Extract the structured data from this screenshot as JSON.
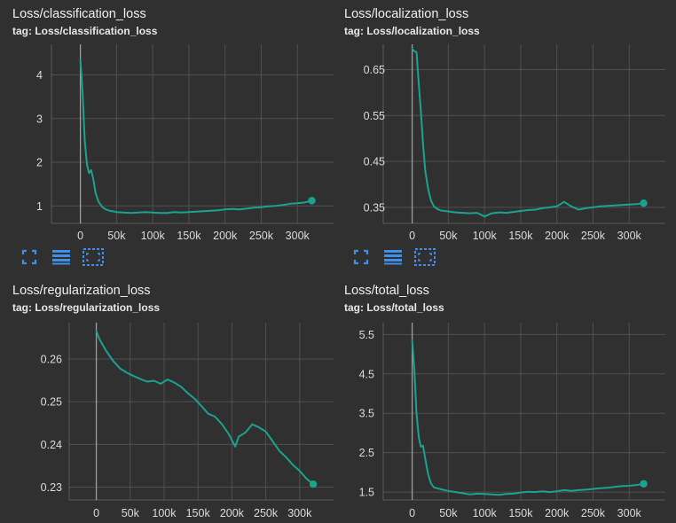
{
  "panels": [
    {
      "title": "Loss/classification_loss",
      "tag": "tag: Loss/classification_loss"
    },
    {
      "title": "Loss/localization_loss",
      "tag": "tag: Loss/localization_loss"
    },
    {
      "title": "Loss/regularization_loss",
      "tag": "tag: Loss/regularization_loss"
    },
    {
      "title": "Loss/total_loss",
      "tag": "tag: Loss/total_loss"
    }
  ],
  "toolbar": {
    "icons": [
      "fit-domain-icon",
      "data-table-icon",
      "selection-fit-icon"
    ],
    "accent": "#3f8ee8"
  },
  "colors": {
    "background": "#303030",
    "series": "#1aa391",
    "grid": "#505050",
    "zero_line": "#9e9e9e"
  },
  "chart_data": [
    {
      "type": "line",
      "title": "Loss/classification_loss",
      "xlim": [
        -40000,
        350000
      ],
      "ylim": [
        0.6,
        4.7
      ],
      "x_ticks": [
        0,
        50000,
        100000,
        150000,
        200000,
        250000,
        300000
      ],
      "x_tick_labels": [
        "0",
        "50k",
        "100k",
        "150k",
        "200k",
        "250k",
        "300k"
      ],
      "y_ticks": [
        1,
        2,
        3,
        4
      ],
      "y_tick_labels": [
        "1",
        "2",
        "3",
        "4"
      ],
      "series": [
        {
          "points": [
            [
              0,
              4.35
            ],
            [
              3000,
              3.6
            ],
            [
              6000,
              2.5
            ],
            [
              9000,
              1.95
            ],
            [
              12000,
              1.75
            ],
            [
              15000,
              1.82
            ],
            [
              18000,
              1.6
            ],
            [
              21000,
              1.3
            ],
            [
              25000,
              1.1
            ],
            [
              30000,
              0.98
            ],
            [
              35000,
              0.92
            ],
            [
              40000,
              0.89
            ],
            [
              50000,
              0.86
            ],
            [
              60000,
              0.85
            ],
            [
              70000,
              0.84
            ],
            [
              80000,
              0.85
            ],
            [
              90000,
              0.86
            ],
            [
              100000,
              0.85
            ],
            [
              110000,
              0.84
            ],
            [
              120000,
              0.84
            ],
            [
              130000,
              0.86
            ],
            [
              140000,
              0.85
            ],
            [
              150000,
              0.86
            ],
            [
              160000,
              0.87
            ],
            [
              170000,
              0.88
            ],
            [
              180000,
              0.89
            ],
            [
              190000,
              0.9
            ],
            [
              200000,
              0.92
            ],
            [
              210000,
              0.93
            ],
            [
              220000,
              0.92
            ],
            [
              230000,
              0.94
            ],
            [
              240000,
              0.96
            ],
            [
              250000,
              0.97
            ],
            [
              260000,
              0.99
            ],
            [
              270000,
              1.0
            ],
            [
              280000,
              1.02
            ],
            [
              290000,
              1.05
            ],
            [
              300000,
              1.06
            ],
            [
              310000,
              1.08
            ],
            [
              320000,
              1.12
            ]
          ]
        }
      ]
    },
    {
      "type": "line",
      "title": "Loss/localization_loss",
      "xlim": [
        -40000,
        350000
      ],
      "ylim": [
        0.315,
        0.705
      ],
      "x_ticks": [
        0,
        50000,
        100000,
        150000,
        200000,
        250000,
        300000
      ],
      "x_tick_labels": [
        "0",
        "50k",
        "100k",
        "150k",
        "200k",
        "250k",
        "300k"
      ],
      "y_ticks": [
        0.35,
        0.45,
        0.55,
        0.65
      ],
      "y_tick_labels": [
        "0.35",
        "0.45",
        "0.55",
        "0.65"
      ],
      "series": [
        {
          "points": [
            [
              0,
              0.695
            ],
            [
              3000,
              0.69
            ],
            [
              6000,
              0.688
            ],
            [
              9000,
              0.62
            ],
            [
              12000,
              0.56
            ],
            [
              15000,
              0.49
            ],
            [
              18000,
              0.43
            ],
            [
              22000,
              0.39
            ],
            [
              26000,
              0.365
            ],
            [
              30000,
              0.352
            ],
            [
              35000,
              0.346
            ],
            [
              40000,
              0.343
            ],
            [
              50000,
              0.341
            ],
            [
              60000,
              0.339
            ],
            [
              70000,
              0.338
            ],
            [
              80000,
              0.337
            ],
            [
              90000,
              0.338
            ],
            [
              100000,
              0.33
            ],
            [
              110000,
              0.337
            ],
            [
              120000,
              0.339
            ],
            [
              130000,
              0.338
            ],
            [
              140000,
              0.34
            ],
            [
              150000,
              0.342
            ],
            [
              160000,
              0.344
            ],
            [
              170000,
              0.345
            ],
            [
              180000,
              0.348
            ],
            [
              190000,
              0.35
            ],
            [
              200000,
              0.352
            ],
            [
              210000,
              0.362
            ],
            [
              220000,
              0.352
            ],
            [
              230000,
              0.345
            ],
            [
              240000,
              0.348
            ],
            [
              250000,
              0.35
            ],
            [
              260000,
              0.352
            ],
            [
              270000,
              0.353
            ],
            [
              280000,
              0.354
            ],
            [
              290000,
              0.355
            ],
            [
              300000,
              0.356
            ],
            [
              310000,
              0.357
            ],
            [
              320000,
              0.359
            ]
          ]
        }
      ]
    },
    {
      "type": "line",
      "title": "Loss/regularization_loss",
      "xlim": [
        -40000,
        350000
      ],
      "ylim": [
        0.227,
        0.2685
      ],
      "x_ticks": [
        0,
        50000,
        100000,
        150000,
        200000,
        250000,
        300000
      ],
      "x_tick_labels": [
        "0",
        "50k",
        "100k",
        "150k",
        "200k",
        "250k",
        "300k"
      ],
      "y_ticks": [
        0.23,
        0.24,
        0.25,
        0.26
      ],
      "y_tick_labels": [
        "0.23",
        "0.24",
        "0.25",
        "0.26"
      ],
      "series": [
        {
          "points": [
            [
              0,
              0.2665
            ],
            [
              5000,
              0.2645
            ],
            [
              15000,
              0.2618
            ],
            [
              25000,
              0.2595
            ],
            [
              35000,
              0.2578
            ],
            [
              45000,
              0.2568
            ],
            [
              55000,
              0.256
            ],
            [
              65000,
              0.2553
            ],
            [
              75000,
              0.2547
            ],
            [
              85000,
              0.2549
            ],
            [
              95000,
              0.2542
            ],
            [
              105000,
              0.2552
            ],
            [
              115000,
              0.2545
            ],
            [
              125000,
              0.2535
            ],
            [
              135000,
              0.252
            ],
            [
              145000,
              0.2507
            ],
            [
              155000,
              0.249
            ],
            [
              165000,
              0.2472
            ],
            [
              175000,
              0.2465
            ],
            [
              185000,
              0.2448
            ],
            [
              195000,
              0.2425
            ],
            [
              205000,
              0.2395
            ],
            [
              210000,
              0.2418
            ],
            [
              220000,
              0.2428
            ],
            [
              230000,
              0.2447
            ],
            [
              240000,
              0.244
            ],
            [
              250000,
              0.243
            ],
            [
              260000,
              0.2408
            ],
            [
              270000,
              0.2385
            ],
            [
              280000,
              0.237
            ],
            [
              290000,
              0.2352
            ],
            [
              300000,
              0.2338
            ],
            [
              310000,
              0.232
            ],
            [
              320000,
              0.2307
            ]
          ]
        }
      ]
    },
    {
      "type": "line",
      "title": "Loss/total_loss",
      "xlim": [
        -40000,
        350000
      ],
      "ylim": [
        1.3,
        5.8
      ],
      "x_ticks": [
        0,
        50000,
        100000,
        150000,
        200000,
        250000,
        300000
      ],
      "x_tick_labels": [
        "0",
        "50k",
        "100k",
        "150k",
        "200k",
        "250k",
        "300k"
      ],
      "y_ticks": [
        1.5,
        2.5,
        3.5,
        4.5,
        5.5
      ],
      "y_tick_labels": [
        "1.5",
        "2.5",
        "3.5",
        "4.5",
        "5.5"
      ],
      "series": [
        {
          "points": [
            [
              0,
              5.35
            ],
            [
              3000,
              4.6
            ],
            [
              6000,
              3.5
            ],
            [
              9000,
              2.9
            ],
            [
              12000,
              2.65
            ],
            [
              15000,
              2.68
            ],
            [
              18000,
              2.35
            ],
            [
              22000,
              1.95
            ],
            [
              26000,
              1.72
            ],
            [
              30000,
              1.62
            ],
            [
              40000,
              1.57
            ],
            [
              50000,
              1.53
            ],
            [
              60000,
              1.5
            ],
            [
              70000,
              1.47
            ],
            [
              80000,
              1.44
            ],
            [
              90000,
              1.46
            ],
            [
              100000,
              1.45
            ],
            [
              110000,
              1.44
            ],
            [
              120000,
              1.43
            ],
            [
              130000,
              1.45
            ],
            [
              140000,
              1.46
            ],
            [
              150000,
              1.49
            ],
            [
              160000,
              1.51
            ],
            [
              170000,
              1.5
            ],
            [
              180000,
              1.52
            ],
            [
              190000,
              1.5
            ],
            [
              200000,
              1.52
            ],
            [
              210000,
              1.55
            ],
            [
              220000,
              1.53
            ],
            [
              230000,
              1.55
            ],
            [
              240000,
              1.56
            ],
            [
              250000,
              1.58
            ],
            [
              260000,
              1.6
            ],
            [
              270000,
              1.61
            ],
            [
              280000,
              1.63
            ],
            [
              290000,
              1.65
            ],
            [
              300000,
              1.66
            ],
            [
              310000,
              1.68
            ],
            [
              320000,
              1.71
            ]
          ]
        }
      ]
    }
  ]
}
